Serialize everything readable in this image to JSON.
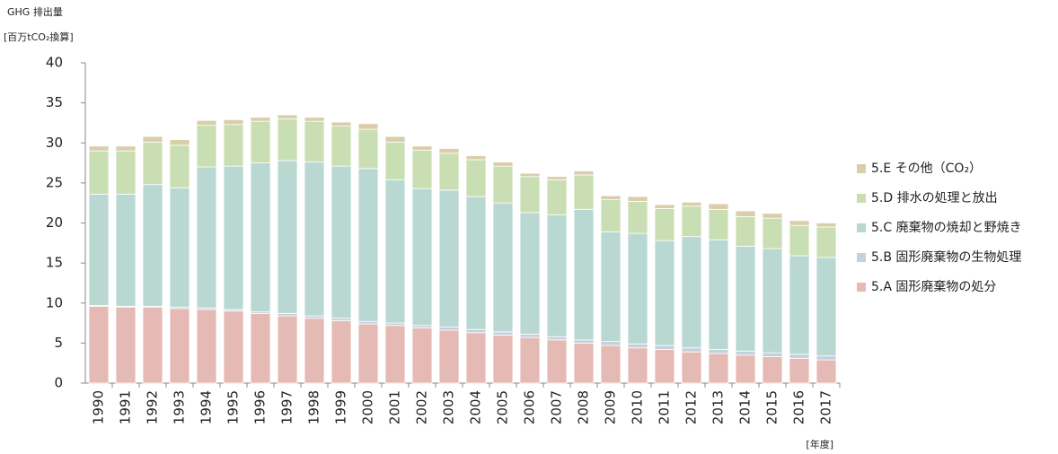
{
  "chart_data": {
    "type": "stacked_bar",
    "title": "GHG 排出量",
    "y_label": "[百万tCO₂換算]",
    "x_label": "[年度]",
    "categories": [
      "1990",
      "1991",
      "1992",
      "1993",
      "1994",
      "1995",
      "1996",
      "1997",
      "1998",
      "1999",
      "2000",
      "2001",
      "2002",
      "2003",
      "2004",
      "2005",
      "2006",
      "2007",
      "2008",
      "2009",
      "2010",
      "2011",
      "2012",
      "2013",
      "2014",
      "2015",
      "2016",
      "2017"
    ],
    "series": [
      {
        "name": "5.A 固形廃棄物の処分",
        "color": "#e6bab4",
        "values": [
          9.6,
          9.5,
          9.5,
          9.3,
          9.2,
          9.0,
          8.7,
          8.4,
          8.1,
          7.8,
          7.4,
          7.2,
          6.9,
          6.6,
          6.3,
          6.0,
          5.7,
          5.4,
          5.0,
          4.7,
          4.4,
          4.2,
          3.9,
          3.7,
          3.5,
          3.3,
          3.1,
          2.9
        ]
      },
      {
        "name": "5.B 固形廃棄物の生物処理",
        "color": "#c6cfdc",
        "values": [
          0.1,
          0.1,
          0.1,
          0.2,
          0.2,
          0.2,
          0.2,
          0.3,
          0.3,
          0.3,
          0.3,
          0.3,
          0.3,
          0.4,
          0.4,
          0.4,
          0.4,
          0.4,
          0.4,
          0.5,
          0.5,
          0.5,
          0.5,
          0.5,
          0.5,
          0.5,
          0.5,
          0.5
        ]
      },
      {
        "name": "5.C 廃棄物の焼却と野焼き",
        "color": "#b9d8d2",
        "values": [
          13.9,
          14.0,
          15.2,
          14.9,
          17.6,
          17.9,
          18.6,
          19.1,
          19.2,
          19.0,
          19.1,
          17.9,
          17.1,
          17.1,
          16.6,
          16.1,
          15.2,
          15.2,
          16.3,
          13.7,
          13.8,
          13.1,
          13.9,
          13.7,
          13.1,
          13.0,
          12.3,
          12.3
        ]
      },
      {
        "name": "5.D 排水の処理と放出",
        "color": "#c9dfb3",
        "values": [
          5.4,
          5.4,
          5.3,
          5.3,
          5.2,
          5.2,
          5.2,
          5.2,
          5.1,
          5.0,
          4.9,
          4.7,
          4.8,
          4.6,
          4.6,
          4.6,
          4.5,
          4.4,
          4.3,
          4.0,
          4.0,
          4.0,
          3.8,
          3.8,
          3.7,
          3.8,
          3.8,
          3.8
        ]
      },
      {
        "name": "5.E その他（CO₂）",
        "color": "#d9cdaa",
        "values": [
          0.6,
          0.6,
          0.7,
          0.7,
          0.6,
          0.6,
          0.5,
          0.5,
          0.5,
          0.5,
          0.7,
          0.7,
          0.5,
          0.6,
          0.5,
          0.5,
          0.4,
          0.4,
          0.5,
          0.5,
          0.6,
          0.5,
          0.5,
          0.7,
          0.7,
          0.6,
          0.6,
          0.5
        ]
      }
    ],
    "ylim": [
      0,
      40
    ],
    "yticks": [
      0,
      5,
      10,
      15,
      20,
      25,
      30,
      35,
      40
    ],
    "legend": "right"
  }
}
